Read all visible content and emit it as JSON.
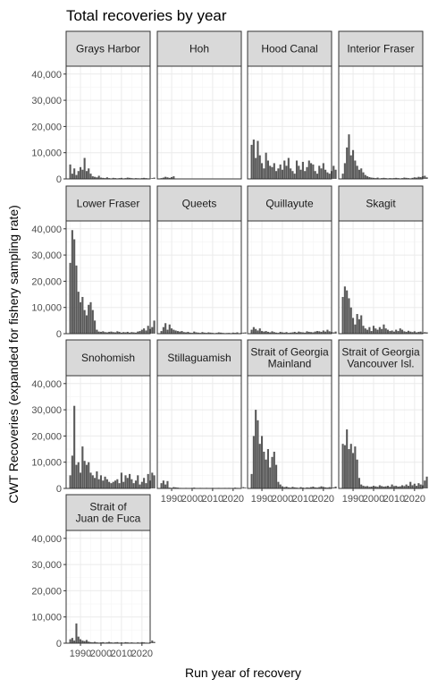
{
  "colors": {
    "bar": "#595959",
    "strip_fill": "#d9d9d9",
    "grid_major": "#ebebeb",
    "grid_minor": "#f5f5f5",
    "panel_border": "#333333"
  },
  "chart_data": {
    "type": "bar",
    "title": "Total recoveries by year",
    "xlabel": "Run year of recovery",
    "ylabel": "CWT Recoveries (expanded for fishery sampling rate)",
    "xlim": [
      1983,
      2024
    ],
    "ylim": [
      0,
      43000
    ],
    "x_ticks": [
      1990,
      2000,
      2010,
      2020
    ],
    "x_tick_labels": [
      "1990",
      "2000",
      "2010",
      "2020"
    ],
    "y_ticks": [
      0,
      10000,
      20000,
      30000,
      40000
    ],
    "y_tick_labels": [
      "0",
      "10,000",
      "20,000",
      "30,000",
      "40,000"
    ],
    "facets": [
      {
        "label": "Grays Harbor",
        "start_year": 1985,
        "values": [
          5500,
          2000,
          4000,
          1500,
          3000,
          4500,
          3500,
          8000,
          3000,
          4000,
          2000,
          1000,
          800,
          600,
          1200,
          500,
          400,
          300,
          600,
          300,
          200,
          400,
          300,
          200,
          300,
          400,
          200,
          300,
          500,
          400,
          300,
          200,
          300,
          250,
          200,
          300,
          400,
          300,
          200,
          150,
          300,
          500
        ]
      },
      {
        "label": "Hoh",
        "start_year": 1985,
        "values": [
          300,
          500,
          800,
          600,
          400,
          700,
          1000
        ]
      },
      {
        "label": "Hood Canal",
        "start_year": 1985,
        "values": [
          13000,
          15000,
          8000,
          14500,
          9000,
          6000,
          4000,
          10000,
          7000,
          5000,
          4500,
          6000,
          3000,
          4000,
          5500,
          3500,
          7000,
          5000,
          8000,
          4000,
          3000,
          2000,
          7000,
          5000,
          3500,
          6500,
          3000,
          4500,
          7000,
          6000,
          5500,
          3000,
          2000,
          5000,
          4000,
          6000,
          3500,
          2500,
          2000,
          3000,
          5000,
          3500
        ]
      },
      {
        "label": "Interior Fraser",
        "start_year": 1985,
        "values": [
          2000,
          6000,
          12000,
          17000,
          9000,
          11000,
          7000,
          5000,
          3500,
          4000,
          2500,
          1500,
          1000,
          700,
          500,
          400,
          300,
          500,
          200,
          300,
          400,
          300,
          200,
          300,
          250,
          300,
          400,
          300,
          200,
          300,
          500,
          400,
          300,
          200,
          400,
          600,
          500,
          800,
          700,
          1000,
          1200,
          600
        ]
      },
      {
        "label": "Lower Fraser",
        "start_year": 1985,
        "values": [
          27000,
          39500,
          36000,
          26000,
          16000,
          12000,
          14000,
          9000,
          7000,
          11000,
          12000,
          9000,
          5000,
          1500,
          800,
          700,
          900,
          600,
          500,
          700,
          800,
          600,
          500,
          900,
          700,
          400,
          600,
          500,
          700,
          400,
          600,
          500,
          400,
          800,
          1000,
          1500,
          2000,
          1200,
          3000,
          1800,
          2500,
          5000
        ]
      },
      {
        "label": "Queets",
        "start_year": 1985,
        "values": [
          1000,
          2500,
          4000,
          1500,
          3500,
          2000,
          1500,
          1200,
          1000,
          800,
          1000,
          600,
          500,
          700,
          400,
          300,
          800,
          500,
          400,
          300,
          600,
          400,
          300,
          500,
          400,
          300,
          200,
          300,
          500,
          400,
          300,
          200,
          250,
          300,
          200,
          400,
          300,
          500,
          200,
          300,
          400,
          500
        ]
      },
      {
        "label": "Quillayute",
        "start_year": 1985,
        "values": [
          1500,
          2500,
          1800,
          1200,
          2000,
          1000,
          800,
          1000,
          700,
          500,
          900,
          600,
          400,
          300,
          700,
          500,
          400,
          600,
          300,
          400,
          500,
          700,
          400,
          800,
          600,
          500,
          400,
          900,
          700,
          600,
          500,
          800,
          1000,
          900,
          700,
          1200,
          800,
          1500,
          900,
          600,
          500,
          800
        ]
      },
      {
        "label": "Skagit",
        "start_year": 1985,
        "values": [
          14000,
          18000,
          16500,
          13500,
          10000,
          6000,
          3500,
          7500,
          5500,
          7000,
          3000,
          2000,
          1500,
          2500,
          1000,
          3000,
          2000,
          1500,
          2500,
          1800,
          3500,
          2000,
          1500,
          1000,
          1200,
          800,
          1500,
          1000,
          2000,
          1500,
          900,
          700,
          1100,
          800,
          600,
          900,
          500,
          700,
          800,
          400,
          600,
          500
        ]
      },
      {
        "label": "Snohomish",
        "start_year": 1985,
        "values": [
          5000,
          12500,
          31500,
          9000,
          10000,
          6000,
          16000,
          10500,
          9000,
          10000,
          6000,
          5000,
          4000,
          6500,
          3500,
          5000,
          3000,
          4500,
          3500,
          2500,
          2000,
          2500,
          3000,
          3500,
          2000,
          6000,
          2500,
          5000,
          4000,
          5500,
          3500,
          2000,
          3000,
          5000,
          1500,
          2500,
          4000,
          2000,
          5500,
          3000,
          6000,
          5000
        ]
      },
      {
        "label": "Stillaguamish",
        "start_year": 1985,
        "values": [
          2000,
          3000,
          1500,
          2800,
          300,
          200,
          500,
          400,
          300,
          200,
          150,
          100,
          200,
          150,
          100,
          200,
          300,
          150,
          100,
          200,
          100,
          150,
          200,
          100,
          150,
          200,
          100,
          150,
          200,
          100,
          150,
          200,
          100,
          200,
          150,
          100,
          300,
          200,
          150,
          100,
          500,
          300
        ]
      },
      {
        "label": "Strait of Georgia\nMainland",
        "start_year": 1985,
        "values": [
          5500,
          20000,
          30000,
          26000,
          17000,
          20000,
          14000,
          11000,
          15000,
          8000,
          12000,
          14000,
          9000,
          2500,
          1500,
          800,
          500,
          700,
          400,
          300,
          600,
          400,
          300,
          200,
          500,
          300,
          200,
          400,
          300,
          500,
          700,
          400,
          300,
          500,
          800,
          600,
          400,
          300,
          500,
          300,
          400,
          700
        ]
      },
      {
        "label": "Strait of Georgia\nVancouver Isl.",
        "start_year": 1985,
        "values": [
          17000,
          16500,
          22500,
          15000,
          17000,
          13500,
          16000,
          11000,
          4000,
          1500,
          1000,
          800,
          900,
          600,
          700,
          1000,
          800,
          600,
          1200,
          900,
          700,
          800,
          1000,
          600,
          1500,
          900,
          1000,
          700,
          800,
          1200,
          900,
          1500,
          1000,
          2500,
          1200,
          1800,
          1000,
          2000,
          1500,
          1200,
          3000,
          4500
        ]
      },
      {
        "label": "Strait of\nJuan de Fuca",
        "start_year": 1985,
        "values": [
          1500,
          2000,
          1000,
          7500,
          2500,
          1500,
          1000,
          800,
          1200,
          600,
          400,
          300,
          500,
          300,
          200,
          300,
          400,
          200,
          300,
          500,
          300,
          200,
          300,
          400,
          200,
          300,
          200,
          400,
          300,
          200,
          300,
          200,
          100,
          300,
          200,
          400,
          300,
          200,
          150,
          300,
          1000,
          500
        ]
      }
    ]
  }
}
